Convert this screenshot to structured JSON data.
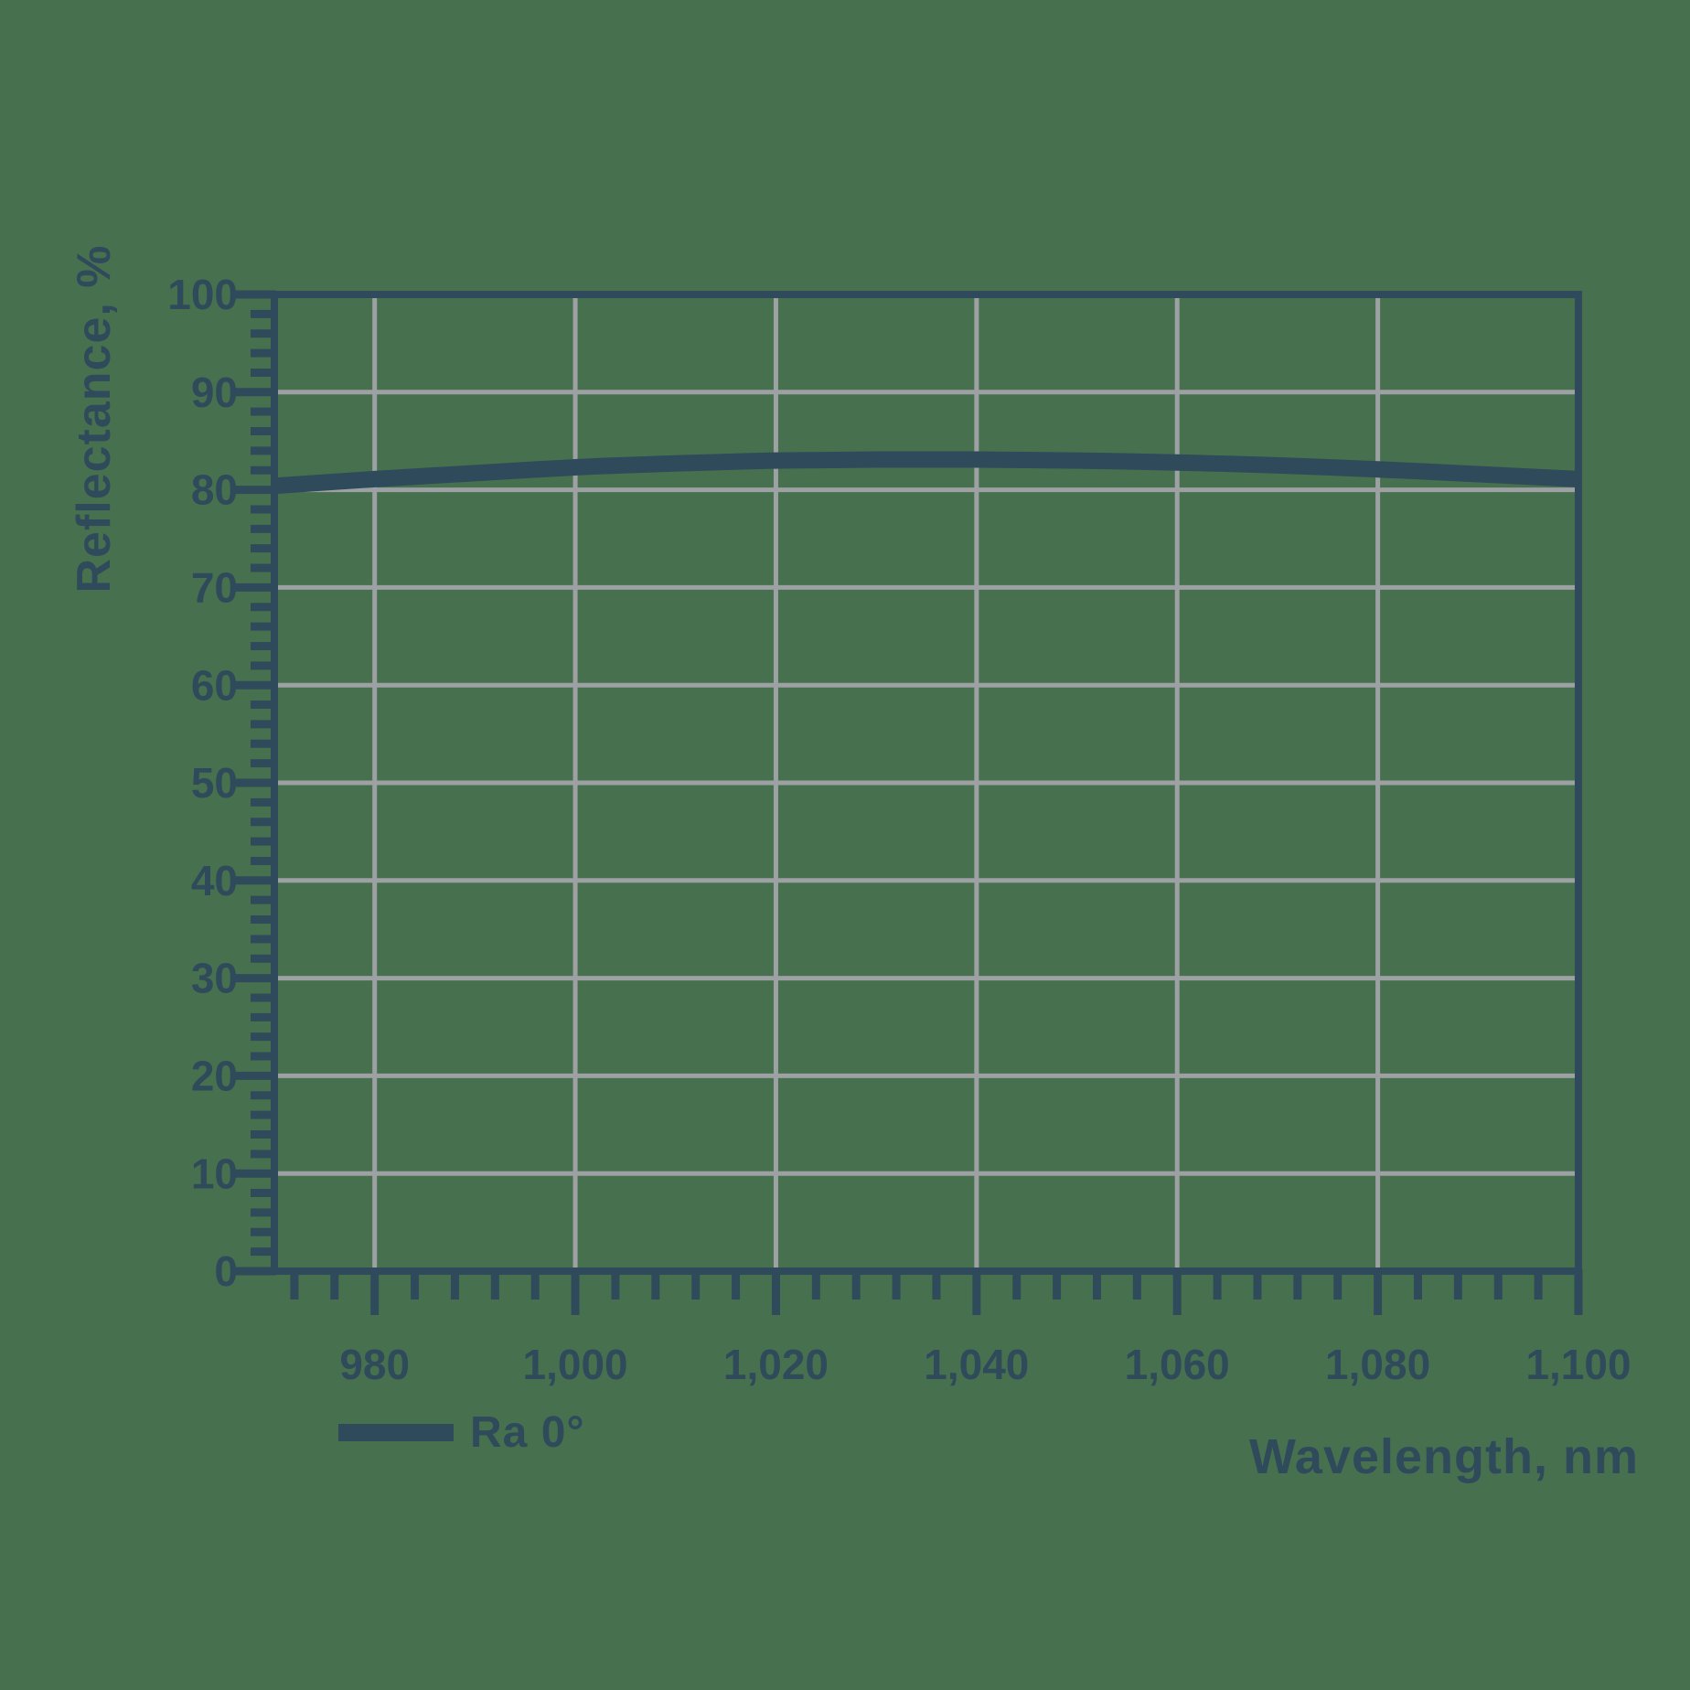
{
  "chart_data": {
    "type": "line",
    "title": "",
    "xlabel": "Wavelength, nm",
    "ylabel": "Reflectance, %",
    "xlim": [
      970,
      1100
    ],
    "ylim": [
      0,
      100
    ],
    "grid": true,
    "legend_position": "bottom-left",
    "x_major_ticks": [
      980,
      1000,
      1020,
      1040,
      1060,
      1080,
      1100
    ],
    "x_tick_labels": [
      "980",
      "1,000",
      "1,020",
      "1,040",
      "1,060",
      "1,080",
      "1,100"
    ],
    "x_minor_step": 4,
    "y_major_ticks": [
      0,
      10,
      20,
      30,
      40,
      50,
      60,
      70,
      80,
      90,
      100
    ],
    "y_tick_labels": [
      "0",
      "10",
      "20",
      "30",
      "40",
      "50",
      "60",
      "70",
      "80",
      "90",
      "100"
    ],
    "y_minor_step": 2,
    "series": [
      {
        "name": "Ra 0°",
        "x": [
          970,
          980,
          990,
          1000,
          1010,
          1020,
          1030,
          1040,
          1050,
          1060,
          1070,
          1080,
          1090,
          1100
        ],
        "y": [
          80.4,
          81.1,
          81.7,
          82.3,
          82.7,
          83.0,
          83.1,
          83.1,
          83.0,
          82.8,
          82.5,
          82.1,
          81.6,
          81.1
        ]
      }
    ],
    "colors": {
      "background": "#47714E",
      "line": "#2F4B5B",
      "axis": "#2F4B5B",
      "grid": "#9DA1A4",
      "text": "#2F4B5B"
    }
  }
}
